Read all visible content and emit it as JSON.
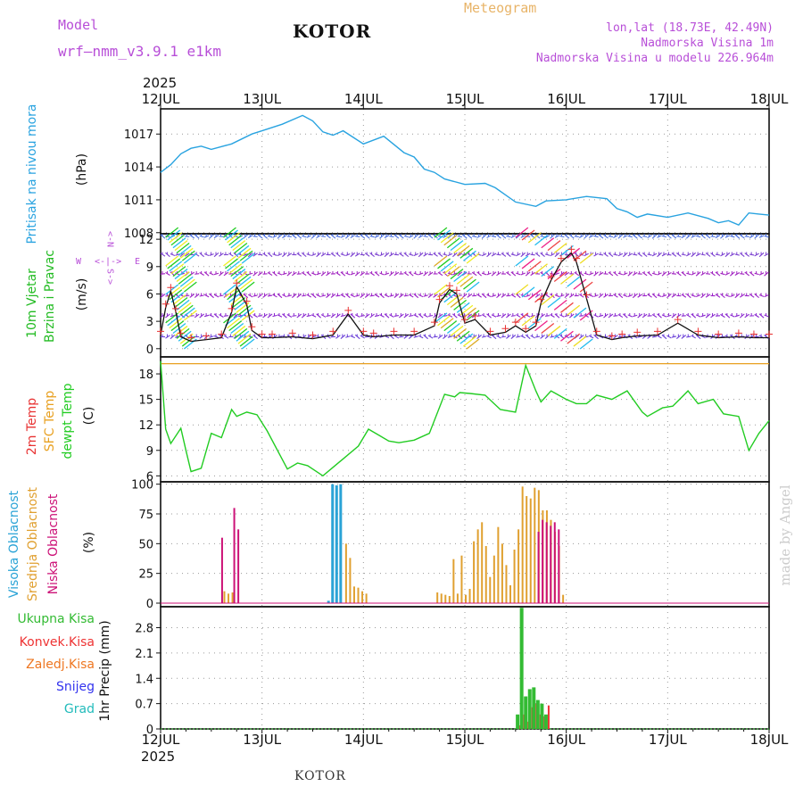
{
  "header": {
    "left_label": "Model",
    "model_name": "wrf–nmm_v3.9.1  e1km",
    "station_title": "KOTOR",
    "chart_kind": "Meteogram",
    "lonlat": "lon,lat (18.73E, 42.49N)",
    "elevation": "Nadmorska Visina 1m",
    "model_elevation": "Nadmorska Visina u modelu 226.964m",
    "watermark": "made by Angel",
    "footer_station": "KOTOR"
  },
  "time_axis": {
    "year": "2025",
    "ticks": [
      "12JUL",
      "13JUL",
      "14JUL",
      "15JUL",
      "16JUL",
      "17JUL",
      "18JUL"
    ]
  },
  "colors": {
    "pressure": "#29a3e0",
    "temp_dewpt": "#22cc22",
    "temp_2m": "#e83232",
    "temp_sfc": "#e8a020",
    "wind_label_green": "#22bb22",
    "cloud_high": "#2aa3d6",
    "cloud_mid": "#e0a030",
    "cloud_low": "#cc1177",
    "precip_total": "#33bb33",
    "precip_conv": "#ee3333",
    "precip_strat": "#ee7722",
    "snow": "#3333ee",
    "hail": "#22bbbb",
    "header_purple": "#b84fd8",
    "header_orange": "#e8b468",
    "watermark": "#cccccc"
  },
  "chart_data": [
    {
      "type": "line",
      "panel": "pressure",
      "ylabel": "Pritisak na nivou mora",
      "unit": "(hPa)",
      "yticks": [
        1008,
        1011,
        1014,
        1017
      ],
      "ylim": [
        1007.9,
        1019.3
      ],
      "x_days": [
        0.0,
        0.1,
        0.2,
        0.3,
        0.4,
        0.5,
        0.7,
        0.9,
        1.0,
        1.2,
        1.4,
        1.5,
        1.6,
        1.7,
        1.8,
        2.0,
        2.2,
        2.4,
        2.5,
        2.6,
        2.7,
        2.8,
        3.0,
        3.2,
        3.3,
        3.5,
        3.7,
        3.8,
        4.0,
        4.2,
        4.4,
        4.5,
        4.6,
        4.7,
        4.8,
        5.0,
        5.2,
        5.4,
        5.5,
        5.6,
        5.7,
        5.8,
        5.9,
        6.0
      ],
      "values": [
        1013.5,
        1014.2,
        1015.2,
        1015.7,
        1015.9,
        1015.6,
        1016.1,
        1017.0,
        1017.3,
        1017.9,
        1018.7,
        1018.2,
        1017.2,
        1016.9,
        1017.3,
        1016.1,
        1016.8,
        1015.3,
        1014.9,
        1013.8,
        1013.5,
        1012.9,
        1012.4,
        1012.5,
        1012.1,
        1010.8,
        1010.4,
        1010.9,
        1011.0,
        1011.3,
        1011.1,
        1010.2,
        1009.9,
        1009.4,
        1009.7,
        1009.4,
        1009.8,
        1009.3,
        1008.9,
        1009.1,
        1008.7,
        1009.8,
        1009.7,
        1009.6
      ],
      "grid": true
    },
    {
      "type": "line",
      "panel": "wind",
      "ylabel": "10m Vjetar Brzina i Pravac",
      "unit": "(m/s)",
      "yticks": [
        0,
        3,
        6,
        9,
        12
      ],
      "ylim": [
        -0.9,
        12.6
      ],
      "compass": {
        "north": "N",
        "west": "W",
        "east": "E",
        "south": "S"
      },
      "speed_x_days": [
        0.0,
        0.05,
        0.1,
        0.15,
        0.2,
        0.3,
        0.45,
        0.6,
        0.7,
        0.75,
        0.85,
        0.9,
        1.0,
        1.1,
        1.3,
        1.5,
        1.7,
        1.85,
        2.0,
        2.1,
        2.3,
        2.5,
        2.7,
        2.75,
        2.85,
        2.92,
        3.0,
        3.1,
        3.25,
        3.4,
        3.5,
        3.6,
        3.7,
        3.75,
        3.85,
        3.95,
        4.05,
        4.1,
        4.2,
        4.3,
        4.45,
        4.55,
        4.7,
        4.9,
        5.1,
        5.3,
        5.5,
        5.7,
        5.85,
        6.0
      ],
      "speed_values": [
        1.5,
        4.5,
        6.3,
        4.0,
        1.3,
        0.8,
        1.0,
        1.2,
        4.0,
        6.8,
        4.8,
        2.0,
        1.2,
        1.2,
        1.3,
        1.1,
        1.5,
        3.8,
        1.5,
        1.3,
        1.5,
        1.5,
        2.5,
        5.0,
        6.5,
        6.0,
        2.8,
        3.2,
        1.5,
        1.8,
        2.5,
        1.8,
        2.5,
        5.0,
        7.5,
        9.5,
        10.5,
        9.5,
        5.5,
        1.5,
        1.0,
        1.2,
        1.4,
        1.5,
        2.8,
        1.5,
        1.2,
        1.3,
        1.2,
        1.2
      ],
      "grid": true
    },
    {
      "type": "line",
      "panel": "temperature",
      "ylabel": "2m Temp / SFC Temp / dewpt Temp",
      "series_names": [
        "2m Temp",
        "SFC Temp",
        "dewpt Temp"
      ],
      "unit": "(C)",
      "yticks": [
        6,
        9,
        12,
        15,
        18
      ],
      "ylim": [
        5.3,
        20.0
      ],
      "dewpt_x_days": [
        0.0,
        0.05,
        0.1,
        0.2,
        0.25,
        0.3,
        0.4,
        0.5,
        0.6,
        0.7,
        0.75,
        0.85,
        0.95,
        1.05,
        1.25,
        1.35,
        1.45,
        1.6,
        1.7,
        1.8,
        1.95,
        2.05,
        2.15,
        2.25,
        2.35,
        2.5,
        2.65,
        2.8,
        2.9,
        2.95,
        3.05,
        3.2,
        3.35,
        3.5,
        3.6,
        3.7,
        3.75,
        3.85,
        4.0,
        4.1,
        4.2,
        4.3,
        4.45,
        4.6,
        4.75,
        4.8,
        4.95,
        5.05,
        5.2,
        5.3,
        5.45,
        5.55,
        5.7,
        5.8,
        5.9,
        6.0
      ],
      "dewpt_values": [
        19.5,
        11.5,
        9.8,
        11.6,
        9.0,
        6.5,
        6.9,
        11.0,
        10.5,
        13.8,
        13.0,
        13.5,
        13.2,
        11.3,
        6.8,
        7.5,
        7.2,
        6.0,
        7.0,
        8.0,
        9.5,
        11.5,
        10.8,
        10.1,
        9.9,
        10.2,
        11.0,
        15.6,
        15.3,
        15.8,
        15.7,
        15.5,
        13.8,
        13.5,
        19.0,
        16.0,
        14.7,
        16.0,
        15.0,
        14.5,
        14.5,
        15.5,
        15.0,
        16.0,
        13.5,
        13.0,
        14.0,
        14.2,
        16.0,
        14.5,
        15.0,
        13.3,
        13.0,
        9.0,
        11.0,
        12.5
      ],
      "sfc_const": 19.2,
      "grid": true
    },
    {
      "type": "bar",
      "panel": "clouds",
      "ylabel": "Visoka Oblacnost / Srednja Oblacnost / Niska Oblacnost",
      "series_names": [
        "Visoka Oblacnost",
        "Srednja Oblacnost",
        "Niska Oblacnost"
      ],
      "unit": "(%)",
      "yticks": [
        0,
        25,
        50,
        75,
        100
      ],
      "ylim": [
        -3,
        102
      ],
      "series": [
        {
          "name": "Visoka Oblacnost",
          "x_days": [
            1.66,
            1.7,
            1.74,
            1.78
          ],
          "values": [
            2,
            100,
            99,
            100
          ]
        },
        {
          "name": "Srednja Oblacnost",
          "x_days": [
            0.62,
            0.66,
            0.7,
            1.82,
            1.86,
            1.9,
            1.94,
            1.98,
            2.02,
            2.72,
            2.76,
            2.8,
            2.84,
            2.88,
            2.92,
            2.96,
            3.0,
            3.04,
            3.08,
            3.12,
            3.16,
            3.2,
            3.24,
            3.28,
            3.32,
            3.36,
            3.4,
            3.44,
            3.48,
            3.52,
            3.56,
            3.6,
            3.64,
            3.68,
            3.72,
            3.76,
            3.8,
            3.84,
            3.88,
            3.92,
            3.96
          ],
          "values": [
            10,
            8,
            9,
            50,
            38,
            14,
            13,
            10,
            8,
            9,
            8,
            7,
            6,
            37,
            8,
            40,
            7,
            12,
            52,
            62,
            68,
            48,
            22,
            40,
            64,
            50,
            32,
            15,
            45,
            62,
            98,
            90,
            88,
            97,
            95,
            78,
            78,
            70,
            60,
            48,
            7
          ]
        },
        {
          "name": "Niska Oblacnost",
          "x_days": [
            0.58,
            0.7,
            0.74,
            3.7,
            3.74,
            3.78,
            3.82,
            3.86,
            3.9
          ],
          "values": [
            55,
            80,
            62,
            60,
            70,
            68,
            65,
            68,
            62
          ]
        }
      ],
      "grid": true
    },
    {
      "type": "bar",
      "panel": "precip",
      "ylabel": "1hr Precip",
      "unit": "(mm)",
      "legend": [
        "Ukupna Kisa",
        "Konvek.Kisa",
        "Zaledj.Kisa",
        "Snijeg",
        "Grad"
      ],
      "yticks": [
        0,
        0.7,
        1.4,
        2.1,
        2.8
      ],
      "ylim": [
        0,
        3.38
      ],
      "x_days": [
        3.52,
        3.56,
        3.6,
        3.64,
        3.68,
        3.72,
        3.76,
        3.8
      ],
      "total": [
        0.4,
        3.35,
        0.9,
        1.1,
        1.15,
        0.8,
        0.7,
        0.4
      ],
      "convective": [
        0.1,
        0.4,
        0.2,
        0.6,
        0.7,
        0.4,
        0.35,
        0.65
      ],
      "grid": true
    }
  ]
}
